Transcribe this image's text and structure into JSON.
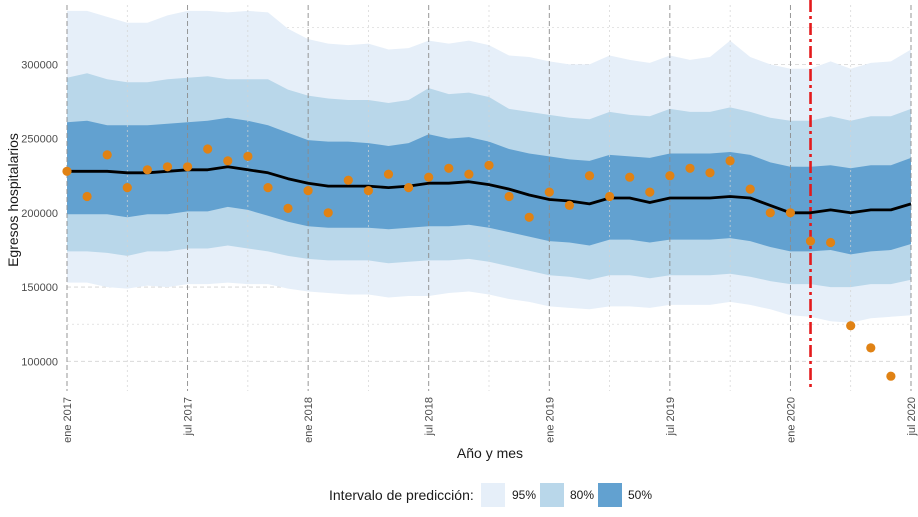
{
  "chart_data": {
    "type": "line",
    "xlabel": "Año y mes",
    "ylabel": "Egresos hospitalarios",
    "x_months": [
      "2017-01",
      "2017-02",
      "2017-03",
      "2017-04",
      "2017-05",
      "2017-06",
      "2017-07",
      "2017-08",
      "2017-09",
      "2017-10",
      "2017-11",
      "2017-12",
      "2018-01",
      "2018-02",
      "2018-03",
      "2018-04",
      "2018-05",
      "2018-06",
      "2018-07",
      "2018-08",
      "2018-09",
      "2018-10",
      "2018-11",
      "2018-12",
      "2019-01",
      "2019-02",
      "2019-03",
      "2019-04",
      "2019-05",
      "2019-06",
      "2019-07",
      "2019-08",
      "2019-09",
      "2019-10",
      "2019-11",
      "2019-12",
      "2020-01",
      "2020-02",
      "2020-03",
      "2020-04",
      "2020-05",
      "2020-06",
      "2020-07"
    ],
    "ylim": [
      80000,
      340000
    ],
    "y_ticks": [
      100000,
      150000,
      200000,
      250000,
      300000
    ],
    "y_tick_labels": [
      "100000",
      "150000",
      "200000",
      "250000",
      "300000"
    ],
    "x_ticks": [
      0,
      6,
      12,
      18,
      24,
      30,
      36,
      42
    ],
    "x_tick_labels": [
      "ene 2017",
      "jul 2017",
      "ene 2018",
      "jul 2018",
      "ene 2019",
      "jul 2019",
      "ene 2020",
      "jul 2020"
    ],
    "intervention_index": 37,
    "fitted": [
      228000,
      228000,
      228000,
      227000,
      227000,
      228000,
      229000,
      229000,
      231000,
      229000,
      227000,
      223000,
      220000,
      218000,
      218000,
      218000,
      217000,
      218000,
      220000,
      220000,
      221000,
      219000,
      216000,
      212000,
      209000,
      208000,
      206000,
      210000,
      210000,
      207000,
      210000,
      210000,
      210000,
      211000,
      210000,
      205000,
      200000,
      200000,
      202000,
      200000,
      202000,
      202000,
      206000
    ],
    "band95": {
      "lower": [
        153000,
        153000,
        150000,
        149000,
        151000,
        150000,
        152000,
        152000,
        153000,
        152000,
        152000,
        149000,
        147000,
        146000,
        145000,
        145000,
        143000,
        144000,
        144000,
        146000,
        147000,
        145000,
        142000,
        140000,
        137000,
        136000,
        135000,
        137000,
        137000,
        136000,
        138000,
        138000,
        138000,
        140000,
        138000,
        135000,
        131000,
        130000,
        127000,
        126000,
        129000,
        130000,
        131000
      ],
      "upper": [
        336000,
        336000,
        332000,
        328000,
        328000,
        333000,
        336000,
        336000,
        335000,
        336000,
        335000,
        324000,
        317000,
        314000,
        313000,
        314000,
        310000,
        311000,
        316000,
        314000,
        316000,
        313000,
        306000,
        305000,
        302000,
        300000,
        300000,
        306000,
        303000,
        301000,
        306000,
        303000,
        305000,
        316000,
        305000,
        300000,
        297000,
        297000,
        302000,
        297000,
        301000,
        302000,
        310000
      ]
    },
    "band80": {
      "lower": [
        174000,
        174000,
        173000,
        171000,
        174000,
        174000,
        176000,
        176000,
        178000,
        176000,
        174000,
        171000,
        169000,
        168000,
        168000,
        168000,
        166000,
        167000,
        168000,
        168000,
        169000,
        167000,
        164000,
        161000,
        158000,
        157000,
        155000,
        158000,
        158000,
        156000,
        158000,
        158000,
        158000,
        159000,
        157000,
        154000,
        152000,
        152000,
        150000,
        150000,
        152000,
        152000,
        155000
      ],
      "upper": [
        291000,
        294000,
        290000,
        288000,
        288000,
        290000,
        291000,
        292000,
        290000,
        290000,
        290000,
        283000,
        279000,
        277000,
        276000,
        276000,
        274000,
        276000,
        284000,
        280000,
        281000,
        278000,
        270000,
        268000,
        266000,
        264000,
        263000,
        268000,
        266000,
        265000,
        270000,
        268000,
        268000,
        271000,
        268000,
        264000,
        262000,
        262000,
        265000,
        262000,
        265000,
        265000,
        270000
      ]
    },
    "band50": {
      "lower": [
        199000,
        199000,
        199000,
        197000,
        199000,
        199000,
        201000,
        201000,
        204000,
        202000,
        198000,
        194000,
        191000,
        190000,
        190000,
        190000,
        189000,
        190000,
        191000,
        191000,
        192000,
        190000,
        187000,
        184000,
        181000,
        180000,
        178000,
        182000,
        182000,
        180000,
        182000,
        182000,
        182000,
        183000,
        181000,
        177000,
        174000,
        174000,
        175000,
        172000,
        174000,
        175000,
        179000
      ],
      "upper": [
        261000,
        262000,
        259000,
        259000,
        259000,
        260000,
        261000,
        262000,
        264000,
        262000,
        259000,
        254000,
        249000,
        248000,
        248000,
        247000,
        245000,
        247000,
        253000,
        250000,
        251000,
        248000,
        243000,
        240000,
        238000,
        236000,
        235000,
        239000,
        238000,
        237000,
        240000,
        240000,
        240000,
        241000,
        239000,
        234000,
        231000,
        231000,
        232000,
        230000,
        232000,
        232000,
        237000
      ]
    },
    "observed": [
      228000,
      211000,
      239000,
      217000,
      229000,
      231000,
      231000,
      243000,
      235000,
      238000,
      217000,
      203000,
      215000,
      200000,
      222000,
      215000,
      226000,
      217000,
      224000,
      230000,
      226000,
      232000,
      211000,
      197000,
      214000,
      205000,
      225000,
      211000,
      224000,
      214000,
      225000,
      230000,
      227000,
      235000,
      216000,
      200000,
      200000,
      181000,
      180000,
      124000,
      109000,
      90000,
      null
    ],
    "legend": {
      "title": "Intervalo de predicción:",
      "items": [
        "95%",
        "80%",
        "50%"
      ]
    },
    "colors": {
      "band95": "#e6eff9",
      "band80": "#b9d7ea",
      "band50": "#62a1d0",
      "fitted": "#000000",
      "observed": "#e08214",
      "intervention": "#e41a1c",
      "grid_major": "#8c8c8c",
      "grid_minor": "#d3d3d3"
    }
  }
}
